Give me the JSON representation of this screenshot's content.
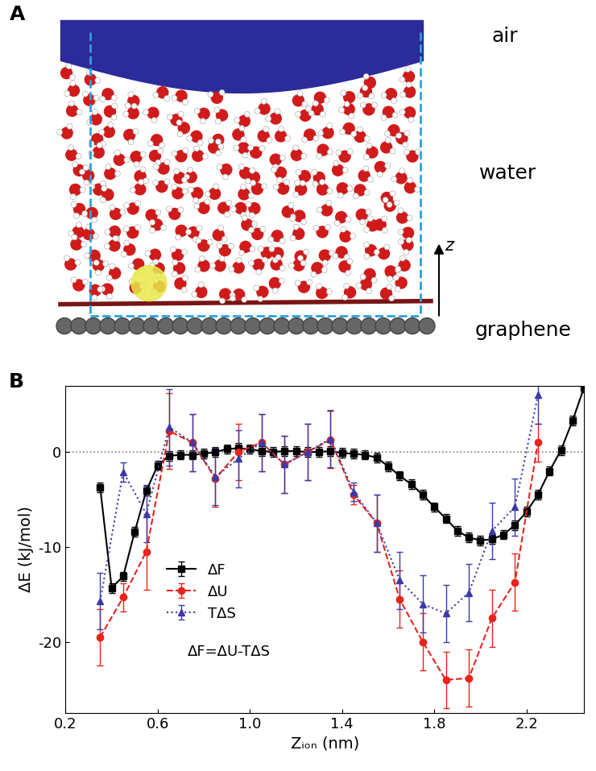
{
  "panel_a": {
    "label": "A",
    "labels": [
      "air",
      "water",
      "graphene"
    ],
    "axis_label": "z"
  },
  "chart_data": {
    "type": "line",
    "annotations": [
      "B",
      "ΔF=ΔU-TΔS"
    ],
    "x_label": "Zᵢₒₙ (nm)",
    "y_label": "ΔE (kJ/mol)",
    "xlim": [
      0.2,
      2.45
    ],
    "xticks": [
      0.2,
      0.6,
      1.0,
      1.4,
      1.8,
      2.2
    ],
    "ylim": [
      -27.5,
      7
    ],
    "yticks": [
      -20,
      -10,
      0
    ],
    "hline": 0,
    "legend": "center left",
    "series": [
      {
        "name": "ΔF",
        "color": "#000000",
        "marker": "square",
        "line_style": "solid",
        "x": [
          0.35,
          0.4,
          0.45,
          0.5,
          0.55,
          0.6,
          0.65,
          0.7,
          0.75,
          0.8,
          0.85,
          0.9,
          0.95,
          1.0,
          1.05,
          1.1,
          1.15,
          1.2,
          1.25,
          1.3,
          1.35,
          1.4,
          1.45,
          1.5,
          1.55,
          1.6,
          1.65,
          1.7,
          1.75,
          1.8,
          1.85,
          1.9,
          1.95,
          2.0,
          2.05,
          2.1,
          2.15,
          2.2,
          2.25,
          2.3,
          2.35,
          2.4,
          2.45
        ],
        "values": [
          -3.7,
          -14.3,
          -13.1,
          -8.4,
          -4.1,
          -1.4,
          -0.4,
          -0.3,
          -0.3,
          -0.2,
          0.0,
          0.3,
          0.4,
          0.3,
          0.1,
          0.0,
          0.1,
          0.1,
          0.0,
          0.0,
          0.1,
          -0.1,
          -0.2,
          -0.3,
          -0.6,
          -1.5,
          -2.5,
          -3.4,
          -4.5,
          -5.8,
          -7.0,
          -8.3,
          -9.0,
          -9.3,
          -9.2,
          -8.7,
          -7.7,
          -6.3,
          -4.5,
          -2.0,
          0.2,
          3.3,
          6.8
        ],
        "errors": [
          0.5,
          0.5,
          0.5,
          0.5,
          0.5,
          0.5,
          0.5,
          0.5,
          0.5,
          0.5,
          0.5,
          0.5,
          0.5,
          0.5,
          0.5,
          0.5,
          0.5,
          0.5,
          0.5,
          0.5,
          0.5,
          0.5,
          0.5,
          0.5,
          0.5,
          0.5,
          0.5,
          0.5,
          0.5,
          0.5,
          0.5,
          0.5,
          0.5,
          0.5,
          0.5,
          0.5,
          0.5,
          0.5,
          0.5,
          0.5,
          0.5,
          0.5,
          0.5
        ]
      },
      {
        "name": "ΔU",
        "color": "#e8241c",
        "marker": "circle",
        "line_style": "dashed",
        "x": [
          0.35,
          0.45,
          0.55,
          0.65,
          0.75,
          0.85,
          0.95,
          1.05,
          1.15,
          1.25,
          1.35,
          1.45,
          1.55,
          1.65,
          1.75,
          1.85,
          1.95,
          2.05,
          2.15,
          2.25
        ],
        "values": [
          -19.5,
          -15.3,
          -10.5,
          2.2,
          1.0,
          -2.8,
          0.0,
          1.0,
          -1.3,
          0.0,
          1.3,
          -4.5,
          -7.5,
          -15.5,
          -20.0,
          -24.0,
          -23.8,
          -17.5,
          -13.7,
          1.0
        ],
        "errors": [
          3.0,
          1.5,
          4.0,
          4.0,
          3.0,
          3.0,
          3.0,
          3.0,
          3.0,
          3.0,
          3.0,
          1.0,
          3.0,
          3.0,
          3.0,
          3.0,
          3.0,
          3.0,
          3.0,
          2.0
        ]
      },
      {
        "name": "TΔS",
        "color": "#3a3aa8",
        "marker": "triangle",
        "line_style": "dotted",
        "x": [
          0.35,
          0.45,
          0.55,
          0.65,
          0.75,
          0.85,
          0.95,
          1.05,
          1.15,
          1.25,
          1.35,
          1.45,
          1.55,
          1.65,
          1.75,
          1.85,
          1.95,
          2.05,
          2.15,
          2.25
        ],
        "values": [
          -15.7,
          -2.1,
          -6.5,
          2.6,
          1.0,
          -2.6,
          -0.7,
          1.0,
          -1.3,
          0.0,
          1.4,
          -4.2,
          -7.5,
          -13.5,
          -16.0,
          -17.0,
          -14.8,
          -8.3,
          -5.8,
          6.0
        ],
        "errors": [
          3.0,
          1.0,
          3.0,
          4.0,
          3.0,
          3.0,
          3.0,
          3.0,
          3.0,
          3.0,
          3.0,
          1.0,
          3.0,
          3.0,
          3.0,
          3.0,
          3.0,
          3.0,
          3.0,
          3.0
        ]
      }
    ]
  }
}
